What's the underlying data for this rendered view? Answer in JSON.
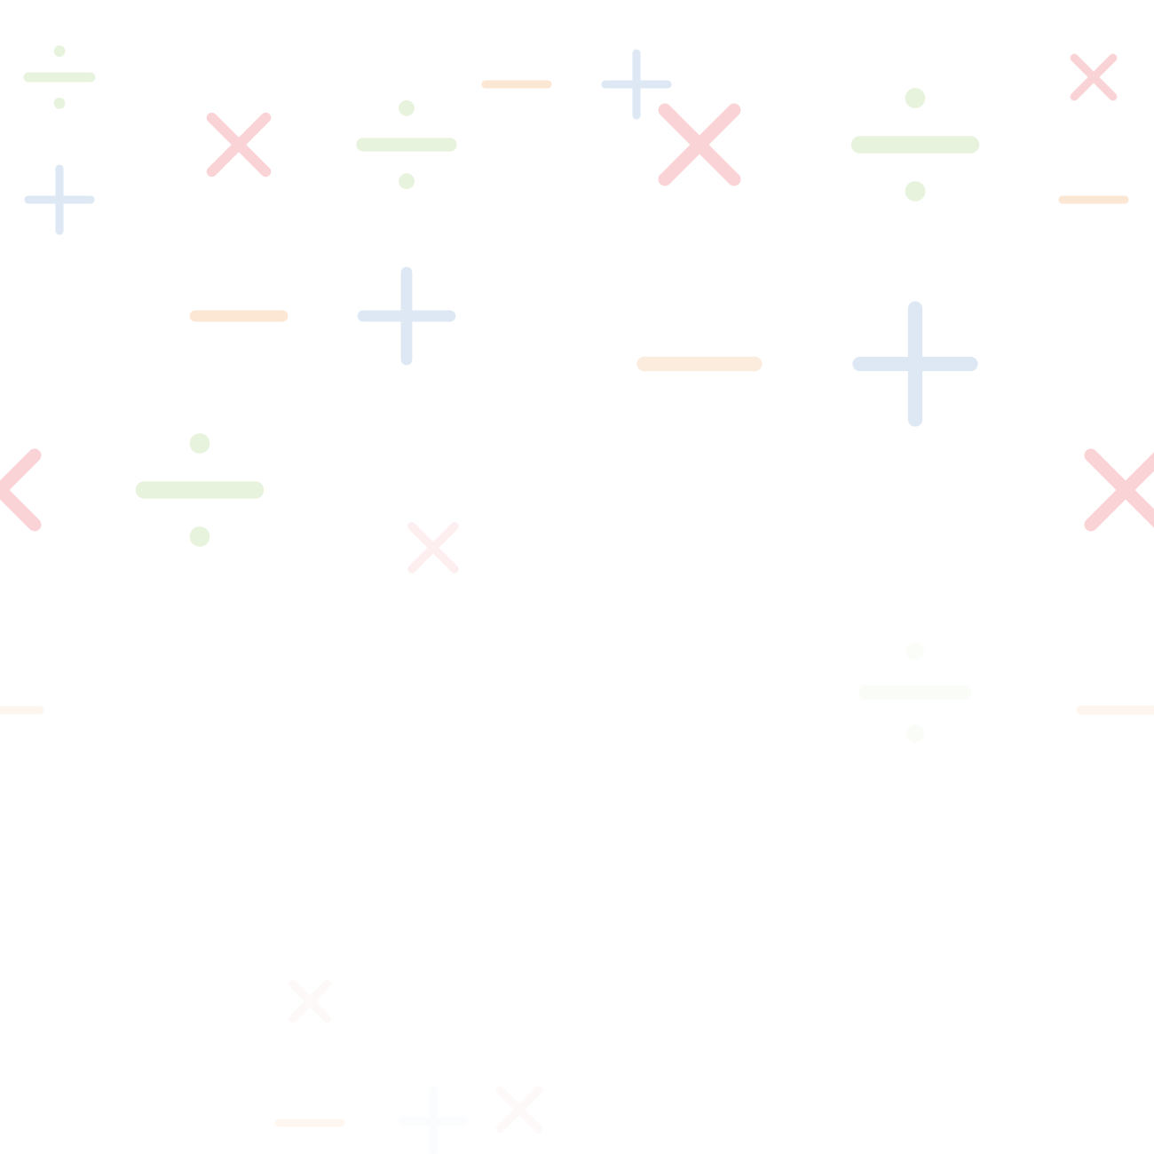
{
  "background_color": "#ffffff",
  "colors": {
    "plus": "#dde8f4",
    "minus": "#fce6d4",
    "times": "#fad3d6",
    "divide": "#e8f3de"
  },
  "symbols": [
    {
      "type": "divide",
      "icon": "divide-icon"
    },
    {
      "type": "plus",
      "icon": "plus-icon"
    },
    {
      "type": "times",
      "icon": "times-icon"
    },
    {
      "type": "divide",
      "icon": "divide-icon"
    },
    {
      "type": "minus",
      "icon": "minus-icon"
    },
    {
      "type": "plus",
      "icon": "plus-icon"
    },
    {
      "type": "times",
      "icon": "times-icon"
    },
    {
      "type": "divide",
      "icon": "divide-icon"
    },
    {
      "type": "times",
      "icon": "times-icon"
    },
    {
      "type": "minus",
      "icon": "minus-icon"
    },
    {
      "type": "minus",
      "icon": "minus-icon"
    },
    {
      "type": "plus",
      "icon": "plus-icon"
    },
    {
      "type": "minus",
      "icon": "minus-icon"
    },
    {
      "type": "plus",
      "icon": "plus-icon"
    },
    {
      "type": "times",
      "icon": "times-icon"
    },
    {
      "type": "divide",
      "icon": "divide-icon"
    },
    {
      "type": "times",
      "icon": "times-icon"
    },
    {
      "type": "times",
      "icon": "times-icon"
    },
    {
      "type": "minus",
      "icon": "minus-icon"
    },
    {
      "type": "divide",
      "icon": "divide-icon"
    },
    {
      "type": "minus",
      "icon": "minus-icon"
    },
    {
      "type": "minus",
      "icon": "minus-icon"
    },
    {
      "type": "times",
      "icon": "times-icon"
    },
    {
      "type": "plus",
      "icon": "plus-icon"
    },
    {
      "type": "times",
      "icon": "times-icon"
    }
  ]
}
